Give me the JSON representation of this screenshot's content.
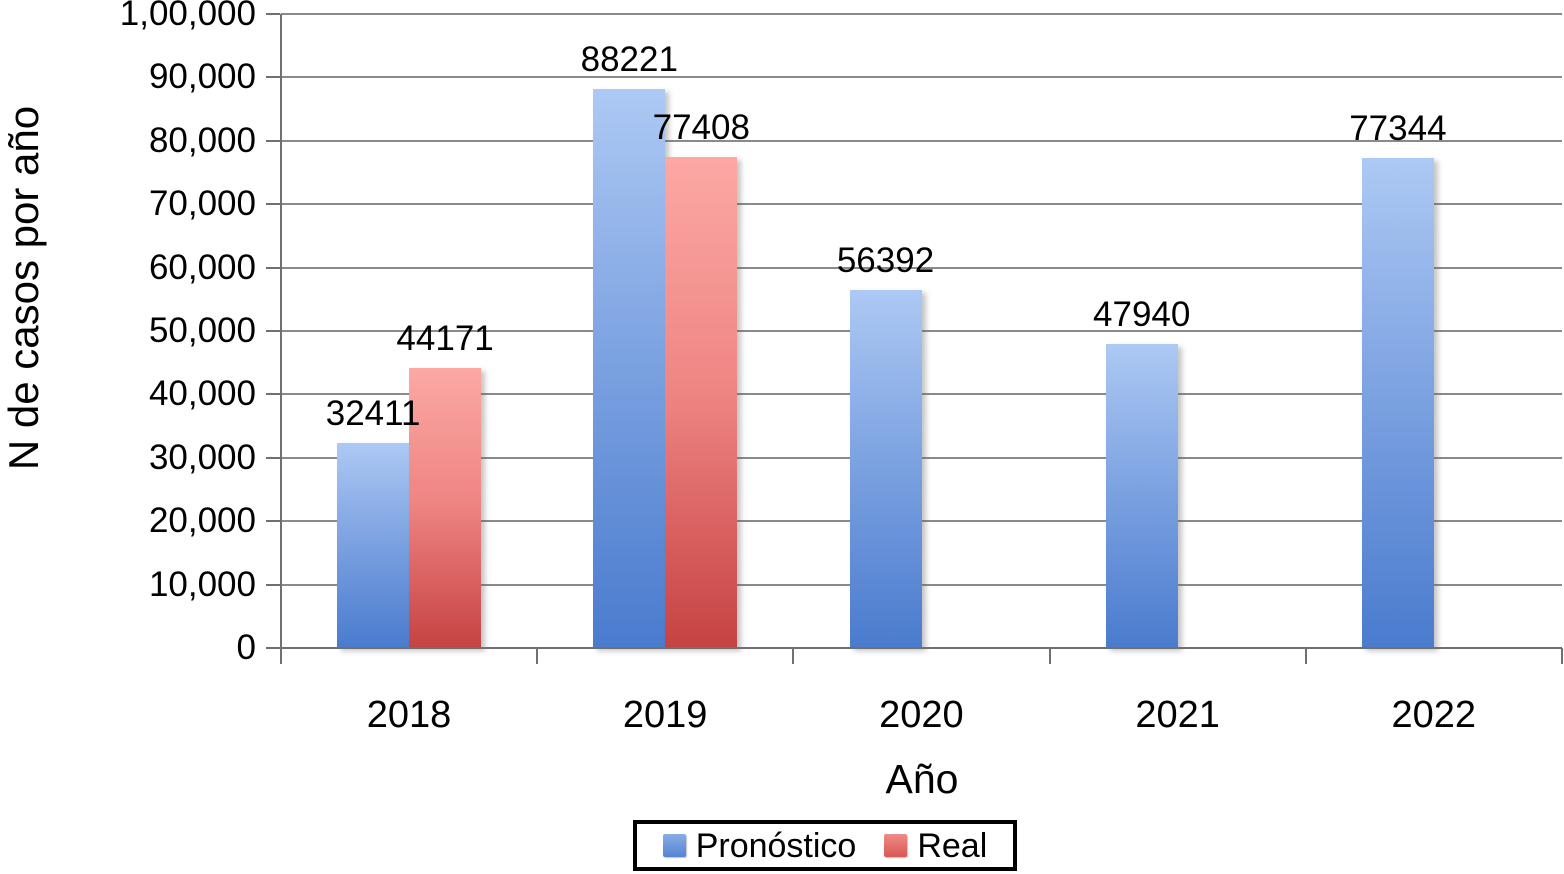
{
  "chart_data": {
    "type": "bar",
    "title": "",
    "categories": [
      "2018",
      "2019",
      "2020",
      "2021",
      "2022"
    ],
    "series": [
      {
        "name": "Pronóstico",
        "values": [
          32411,
          88221,
          56392,
          47940,
          77344
        ],
        "data_labels": [
          "32411",
          "88221",
          "56392",
          "47940",
          "77344"
        ],
        "color_top": "#ADC9F4",
        "color_mid": "#7CA2E1",
        "color_bottom": "#4A7BCE",
        "legend_color_top": "#88ACE5",
        "legend_color_bottom": "#5584D2"
      },
      {
        "name": "Real",
        "values": [
          44171,
          77408,
          null,
          null,
          null
        ],
        "data_labels": [
          "44171",
          "77408",
          "",
          "",
          ""
        ],
        "color_top": "#FCA8A4",
        "color_mid": "#EE8583",
        "color_bottom": "#C64242",
        "legend_color_top": "#EF8B87",
        "legend_color_bottom": "#D85854"
      }
    ],
    "xlabel": "Año",
    "ylabel": "N de casos por año",
    "ylim": [
      0,
      100000
    ],
    "ytick_step": 10000,
    "ytick_labels": [
      "0",
      "10,000",
      "20,000",
      "30,000",
      "40,000",
      "50,000",
      "60,000",
      "70,000",
      "80,000",
      "90,000",
      "1,00,000"
    ],
    "grid": true,
    "legend_position": "bottom",
    "legend_items": [
      "Pronóstico",
      "Real"
    ]
  },
  "colors": {
    "gridline": "#8A8A8A",
    "axis": "#707070",
    "text": "#000000",
    "background": "#FFFFFF"
  }
}
